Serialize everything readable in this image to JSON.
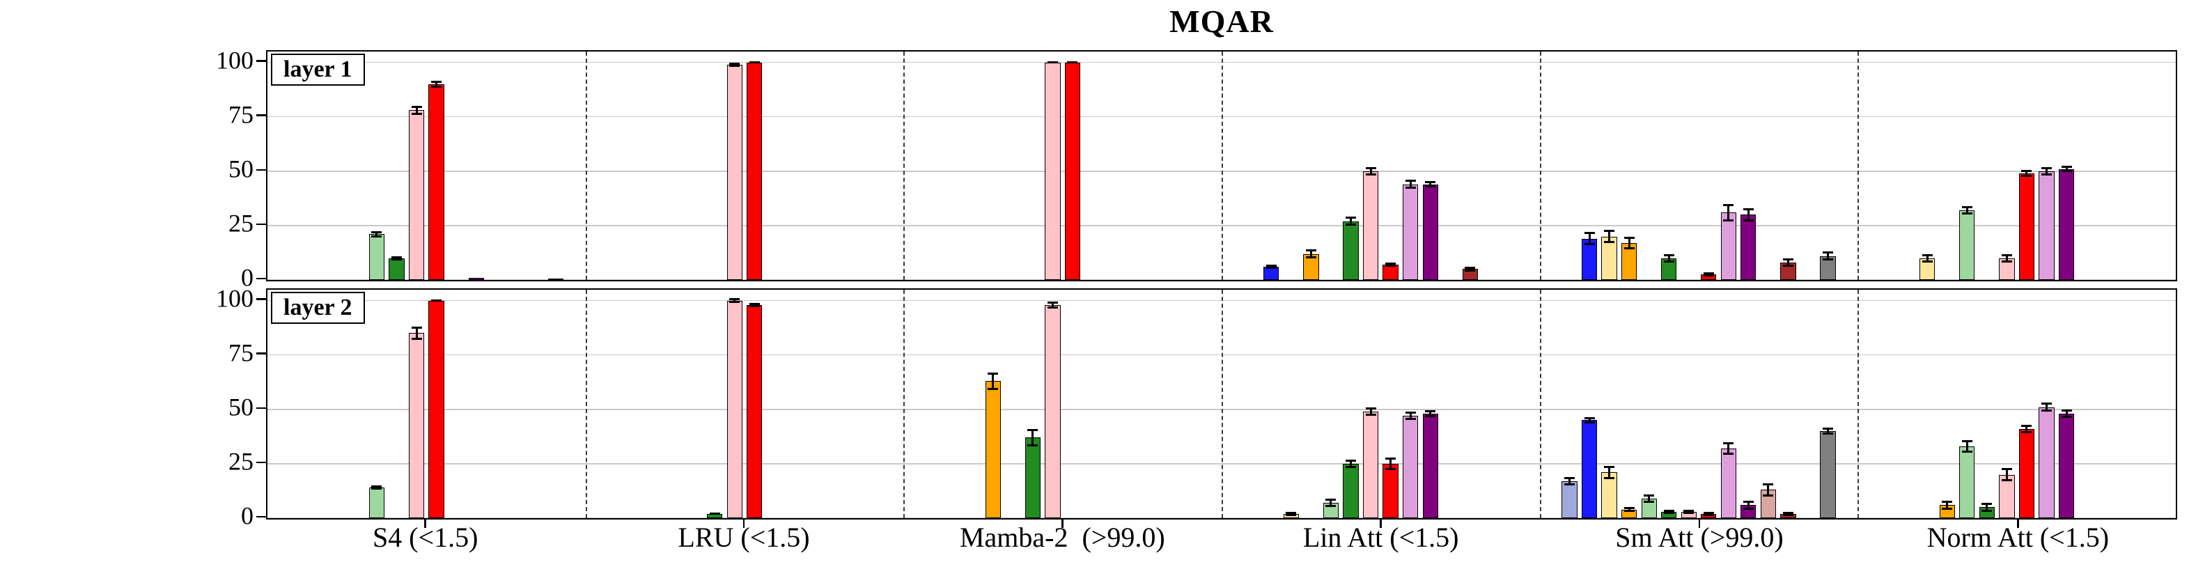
{
  "colors": {
    "paleblue": "#A0A8DC",
    "blue": "#1A1AFF",
    "paleyellow": "#FFE699",
    "orange": "#FFA500",
    "palegreen": "#9FD89F",
    "green": "#228B22",
    "palered": "#FFC3C8",
    "red": "#FF0000",
    "palepurple": "#DDA0DD",
    "purple": "#800080",
    "palemaroon": "#D9A6A0",
    "darkred": "#A52A2A",
    "palegray": "#CCCCCC",
    "gray": "#808080"
  },
  "slot_order": [
    "paleblue",
    "blue",
    "paleyellow",
    "orange",
    "palegreen",
    "green",
    "palered",
    "red",
    "palepurple",
    "purple",
    "palemaroon",
    "darkred",
    "palegray",
    "gray"
  ],
  "chart_data": {
    "type": "bar",
    "title": "MQAR",
    "ylabel": "",
    "xlabel": "",
    "ylim": [
      0,
      105
    ],
    "y_ticks": [
      0,
      25,
      50,
      75,
      100
    ],
    "grid": "horizontal",
    "groups": [
      "S4 (<1.5)",
      "LRU (<1.5)",
      "Mamba-2  (>99.0)",
      "Lin Att (<1.5)",
      "Sm Att (>99.0)",
      "Norm Att (<1.5)"
    ],
    "panels": [
      {
        "label": "layer 1",
        "groups": [
          [
            {
              "color": "palegreen",
              "value": 21,
              "err": 1.5
            },
            {
              "color": "green",
              "value": 10,
              "err": 1
            },
            {
              "color": "palered",
              "value": 78,
              "err": 2
            },
            {
              "color": "red",
              "value": 90,
              "err": 1.5
            },
            {
              "color": "purple",
              "value": 1,
              "err": 0.5
            },
            {
              "color": "gray",
              "value": 0.5,
              "err": 0.3
            }
          ],
          [
            {
              "color": "palered",
              "value": 99,
              "err": 1
            },
            {
              "color": "red",
              "value": 100,
              "err": 0.5
            }
          ],
          [
            {
              "color": "palered",
              "value": 100,
              "err": 0.5
            },
            {
              "color": "red",
              "value": 100,
              "err": 0.5
            }
          ],
          [
            {
              "color": "blue",
              "value": 6,
              "err": 1
            },
            {
              "color": "orange",
              "value": 12,
              "err": 2
            },
            {
              "color": "green",
              "value": 27,
              "err": 2
            },
            {
              "color": "palered",
              "value": 50,
              "err": 2
            },
            {
              "color": "red",
              "value": 7,
              "err": 1
            },
            {
              "color": "palepurple",
              "value": 44,
              "err": 2
            },
            {
              "color": "purple",
              "value": 44,
              "err": 1.5
            },
            {
              "color": "darkred",
              "value": 5,
              "err": 1
            }
          ],
          [
            {
              "color": "blue",
              "value": 19,
              "err": 3
            },
            {
              "color": "paleyellow",
              "value": 20,
              "err": 3
            },
            {
              "color": "orange",
              "value": 17,
              "err": 3
            },
            {
              "color": "green",
              "value": 10,
              "err": 2
            },
            {
              "color": "red",
              "value": 2.5,
              "err": 1
            },
            {
              "color": "palepurple",
              "value": 31,
              "err": 4
            },
            {
              "color": "purple",
              "value": 30,
              "err": 3
            },
            {
              "color": "darkred",
              "value": 8,
              "err": 2
            },
            {
              "color": "gray",
              "value": 11,
              "err": 2
            }
          ],
          [
            {
              "color": "paleyellow",
              "value": 10,
              "err": 2
            },
            {
              "color": "palegreen",
              "value": 32,
              "err": 2
            },
            {
              "color": "palered",
              "value": 10,
              "err": 2
            },
            {
              "color": "red",
              "value": 49,
              "err": 1.5
            },
            {
              "color": "palepurple",
              "value": 50,
              "err": 2
            },
            {
              "color": "purple",
              "value": 51,
              "err": 1.5
            }
          ]
        ]
      },
      {
        "label": "layer 2",
        "groups": [
          [
            {
              "color": "palegreen",
              "value": 14,
              "err": 1
            },
            {
              "color": "palered",
              "value": 85,
              "err": 3
            },
            {
              "color": "red",
              "value": 100,
              "err": 0.5
            }
          ],
          [
            {
              "color": "green",
              "value": 2,
              "err": 0.5
            },
            {
              "color": "palered",
              "value": 100,
              "err": 1
            },
            {
              "color": "red",
              "value": 98,
              "err": 1
            }
          ],
          [
            {
              "color": "orange",
              "value": 63,
              "err": 4
            },
            {
              "color": "green",
              "value": 37,
              "err": 4
            },
            {
              "color": "palered",
              "value": 98,
              "err": 1.5
            }
          ],
          [
            {
              "color": "paleyellow",
              "value": 2,
              "err": 1
            },
            {
              "color": "palegreen",
              "value": 7,
              "err": 2
            },
            {
              "color": "green",
              "value": 25,
              "err": 2
            },
            {
              "color": "palered",
              "value": 49,
              "err": 2
            },
            {
              "color": "red",
              "value": 25,
              "err": 3
            },
            {
              "color": "palepurple",
              "value": 47,
              "err": 2
            },
            {
              "color": "purple",
              "value": 48,
              "err": 1.5
            }
          ],
          [
            {
              "color": "paleblue",
              "value": 17,
              "err": 2
            },
            {
              "color": "blue",
              "value": 45,
              "err": 1.5
            },
            {
              "color": "paleyellow",
              "value": 21,
              "err": 3
            },
            {
              "color": "orange",
              "value": 4,
              "err": 1
            },
            {
              "color": "palegreen",
              "value": 9,
              "err": 2
            },
            {
              "color": "green",
              "value": 3,
              "err": 1
            },
            {
              "color": "palered",
              "value": 3,
              "err": 1
            },
            {
              "color": "red",
              "value": 2,
              "err": 1
            },
            {
              "color": "palepurple",
              "value": 32,
              "err": 3
            },
            {
              "color": "purple",
              "value": 6,
              "err": 2
            },
            {
              "color": "palemaroon",
              "value": 13,
              "err": 3
            },
            {
              "color": "darkred",
              "value": 2,
              "err": 1
            },
            {
              "color": "gray",
              "value": 40,
              "err": 1.5
            }
          ],
          [
            {
              "color": "orange",
              "value": 6,
              "err": 2
            },
            {
              "color": "palegreen",
              "value": 33,
              "err": 3
            },
            {
              "color": "green",
              "value": 5,
              "err": 2
            },
            {
              "color": "palered",
              "value": 20,
              "err": 3
            },
            {
              "color": "red",
              "value": 41,
              "err": 2
            },
            {
              "color": "palepurple",
              "value": 51,
              "err": 2
            },
            {
              "color": "purple",
              "value": 48,
              "err": 2
            }
          ]
        ]
      }
    ]
  }
}
